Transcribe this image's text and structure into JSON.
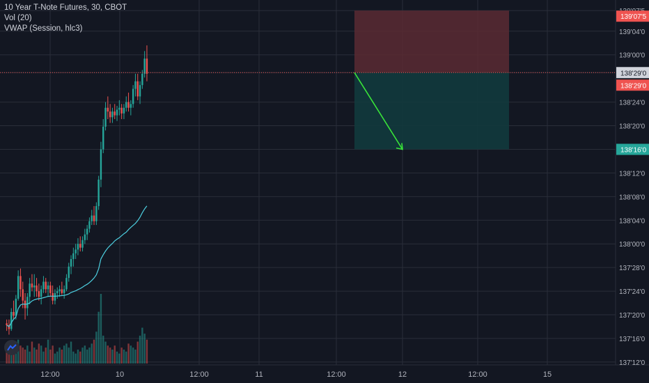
{
  "header": {
    "symbol": "10 Year T-Note Futures, 30, CBOT",
    "indicator_vol": "Vol (20)",
    "indicator_vwap": "VWAP (Session, hlc3)"
  },
  "colors": {
    "background": "#131722",
    "grid": "#2a2e39",
    "up": "#26a69a",
    "down": "#ef5350",
    "vwap": "#4dd0e1",
    "arrow": "#39e639",
    "stop_zone": "#5a2a32",
    "target_zone": "#123a3d",
    "price_line": "#ef5350"
  },
  "icons": {
    "logo": "tradingview-logo-icon"
  },
  "chart_data": {
    "type": "candlestick",
    "title": "10 Year T-Note Futures, 30, CBOT",
    "y_axis": {
      "ticks": [
        "137'12'0",
        "137'16'0",
        "137'20'0",
        "137'24'0",
        "137'28'0",
        "138'00'0",
        "138'04'0",
        "138'08'0",
        "138'12'0",
        "138'16'0",
        "138'20'0",
        "138'24'0",
        "138'29'0",
        "139'00'0",
        "139'04'0",
        "139'07'5"
      ],
      "tick_values": [
        137.375,
        137.5,
        137.625,
        137.75,
        137.875,
        138.0,
        138.125,
        138.25,
        138.375,
        138.5,
        138.625,
        138.75,
        138.906,
        139.0,
        139.125,
        139.234
      ],
      "range": [
        137.36,
        139.29
      ]
    },
    "x_axis": {
      "ticks": [
        "12:00",
        "10",
        "12:00",
        "11",
        "12:00",
        "12",
        "12:00",
        "15"
      ]
    },
    "labels": {
      "current_price": "138'29'0",
      "prev_price": "138'29'0",
      "target_price": "138'16'0",
      "stop_price": "139'07'5"
    },
    "position": {
      "type": "short",
      "entry": 138.906,
      "stop": 139.234,
      "target": 138.5
    },
    "candles": [
      [
        137.58,
        137.6,
        137.54,
        137.57
      ],
      [
        137.57,
        137.6,
        137.52,
        137.55
      ],
      [
        137.55,
        137.66,
        137.54,
        137.64
      ],
      [
        137.64,
        137.7,
        137.6,
        137.62
      ],
      [
        137.62,
        137.73,
        137.6,
        137.71
      ],
      [
        137.71,
        137.86,
        137.7,
        137.83
      ],
      [
        137.83,
        137.87,
        137.72,
        137.76
      ],
      [
        137.76,
        137.8,
        137.66,
        137.7
      ],
      [
        137.7,
        137.74,
        137.6,
        137.66
      ],
      [
        137.66,
        137.74,
        137.62,
        137.72
      ],
      [
        137.72,
        137.82,
        137.68,
        137.79
      ],
      [
        137.79,
        137.84,
        137.75,
        137.77
      ],
      [
        137.77,
        137.84,
        137.72,
        137.78
      ],
      [
        137.78,
        137.82,
        137.72,
        137.75
      ],
      [
        137.75,
        137.79,
        137.7,
        137.72
      ],
      [
        137.72,
        137.78,
        137.68,
        137.76
      ],
      [
        137.76,
        137.83,
        137.74,
        137.8
      ],
      [
        137.8,
        137.82,
        137.74,
        137.76
      ],
      [
        137.76,
        137.8,
        137.72,
        137.78
      ],
      [
        137.78,
        137.8,
        137.72,
        137.74
      ],
      [
        137.74,
        137.78,
        137.68,
        137.7
      ],
      [
        137.7,
        137.76,
        137.68,
        137.74
      ],
      [
        137.74,
        137.77,
        137.71,
        137.75
      ],
      [
        137.75,
        137.78,
        137.72,
        137.76
      ],
      [
        137.76,
        137.8,
        137.73,
        137.74
      ],
      [
        137.74,
        137.78,
        137.71,
        137.76
      ],
      [
        137.76,
        137.84,
        137.75,
        137.82
      ],
      [
        137.82,
        137.9,
        137.8,
        137.88
      ],
      [
        137.88,
        137.94,
        137.84,
        137.92
      ],
      [
        137.92,
        137.98,
        137.88,
        137.95
      ],
      [
        137.95,
        138.0,
        137.92,
        137.97
      ],
      [
        137.97,
        138.03,
        137.94,
        138.0
      ],
      [
        138.0,
        138.04,
        137.96,
        137.98
      ],
      [
        137.98,
        138.04,
        137.96,
        138.02
      ],
      [
        138.02,
        138.08,
        138.0,
        138.05
      ],
      [
        138.05,
        138.1,
        138.02,
        138.08
      ],
      [
        138.08,
        138.14,
        138.06,
        138.12
      ],
      [
        138.12,
        138.18,
        138.1,
        138.15
      ],
      [
        138.15,
        138.2,
        138.1,
        138.12
      ],
      [
        138.12,
        138.22,
        138.1,
        138.2
      ],
      [
        138.2,
        138.36,
        138.18,
        138.34
      ],
      [
        138.34,
        138.54,
        138.3,
        138.5
      ],
      [
        138.5,
        138.66,
        138.48,
        138.62
      ],
      [
        138.62,
        138.75,
        138.6,
        138.72
      ],
      [
        138.72,
        138.78,
        138.66,
        138.7
      ],
      [
        138.7,
        138.74,
        138.64,
        138.67
      ],
      [
        138.67,
        138.72,
        138.64,
        138.7
      ],
      [
        138.7,
        138.74,
        138.66,
        138.68
      ],
      [
        138.68,
        138.73,
        138.65,
        138.71
      ],
      [
        138.71,
        138.76,
        138.68,
        138.72
      ],
      [
        138.72,
        138.74,
        138.66,
        138.69
      ],
      [
        138.69,
        138.74,
        138.66,
        138.72
      ],
      [
        138.72,
        138.78,
        138.7,
        138.75
      ],
      [
        138.75,
        138.8,
        138.7,
        138.72
      ],
      [
        138.72,
        138.76,
        138.68,
        138.74
      ],
      [
        138.74,
        138.84,
        138.72,
        138.82
      ],
      [
        138.82,
        138.9,
        138.78,
        138.86
      ],
      [
        138.86,
        138.9,
        138.76,
        138.78
      ],
      [
        138.78,
        138.86,
        138.74,
        138.84
      ],
      [
        138.84,
        138.92,
        138.82,
        138.9
      ],
      [
        138.9,
        139.02,
        138.88,
        138.98
      ],
      [
        138.98,
        139.05,
        138.86,
        138.9
      ]
    ],
    "volume": [
      6,
      7,
      9,
      10,
      6,
      12,
      9,
      8,
      7,
      9,
      6,
      11,
      8,
      7,
      10,
      9,
      6,
      8,
      12,
      7,
      9,
      5,
      6,
      8,
      7,
      9,
      10,
      8,
      11,
      6,
      5,
      7,
      6,
      8,
      9,
      7,
      8,
      10,
      12,
      16,
      26,
      35,
      14,
      11,
      9,
      8,
      7,
      9,
      6,
      5,
      8,
      7,
      6,
      10,
      9,
      8,
      7,
      11,
      14,
      18,
      15,
      12
    ]
  }
}
